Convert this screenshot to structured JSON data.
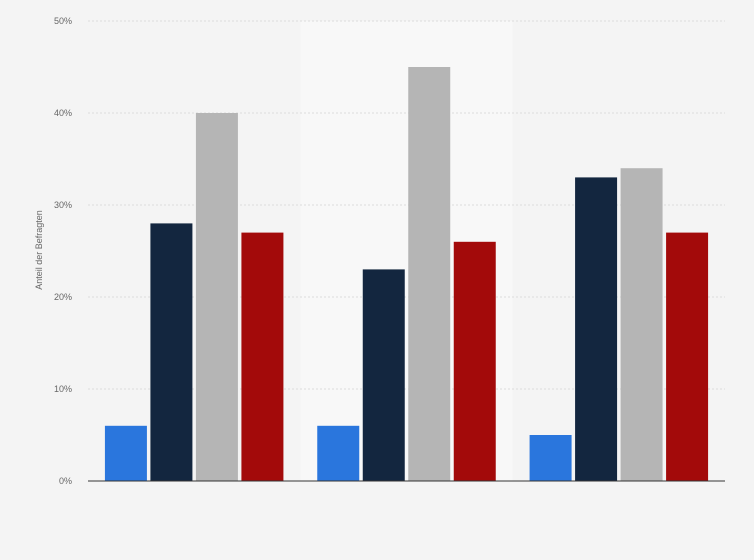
{
  "chart_data": {
    "type": "bar",
    "title": "",
    "xlabel": "",
    "ylabel": "Anteil der Befragten",
    "ylim": [
      0,
      50
    ],
    "yticks": [
      0,
      10,
      20,
      30,
      40,
      50
    ],
    "ytick_suffix": "%",
    "grid": true,
    "legend": "none",
    "categories": [
      "",
      "",
      ""
    ],
    "series": [
      {
        "color": "#2a76dd",
        "values": [
          6,
          6,
          5
        ]
      },
      {
        "color": "#13263f",
        "values": [
          28,
          23,
          33
        ]
      },
      {
        "color": "#b5b5b5",
        "values": [
          40,
          45,
          34
        ]
      },
      {
        "color": "#a30a0a",
        "values": [
          27,
          26,
          27
        ]
      }
    ]
  },
  "colors": {
    "background": "#f4f4f4",
    "highlight_band": "#f8f8f8",
    "grid": "#dcdcdc",
    "axis": "#333333"
  }
}
